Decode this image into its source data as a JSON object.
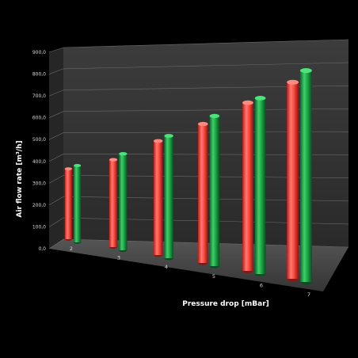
{
  "chart_data": {
    "type": "bar",
    "title": "",
    "xlabel": "Pressure drop [mBar]",
    "ylabel": "Air flow rate [m³/h]",
    "ylim": [
      0,
      900
    ],
    "yticks": [
      "0,0",
      "100,0",
      "200,0",
      "300,0",
      "400,0",
      "500,0",
      "600,0",
      "700,0",
      "800,0",
      "900,0"
    ],
    "categories": [
      "2",
      "3",
      "4",
      "5",
      "6",
      "7"
    ],
    "series": [
      {
        "color": "#ff5a52",
        "values": [
          325,
          385,
          480,
          560,
          650,
          730
        ]
      },
      {
        "color": "#22b04e",
        "values": [
          355,
          425,
          515,
          605,
          680,
          785
        ]
      }
    ],
    "grid": true,
    "legend": "none",
    "style": "3d-cylinder"
  }
}
